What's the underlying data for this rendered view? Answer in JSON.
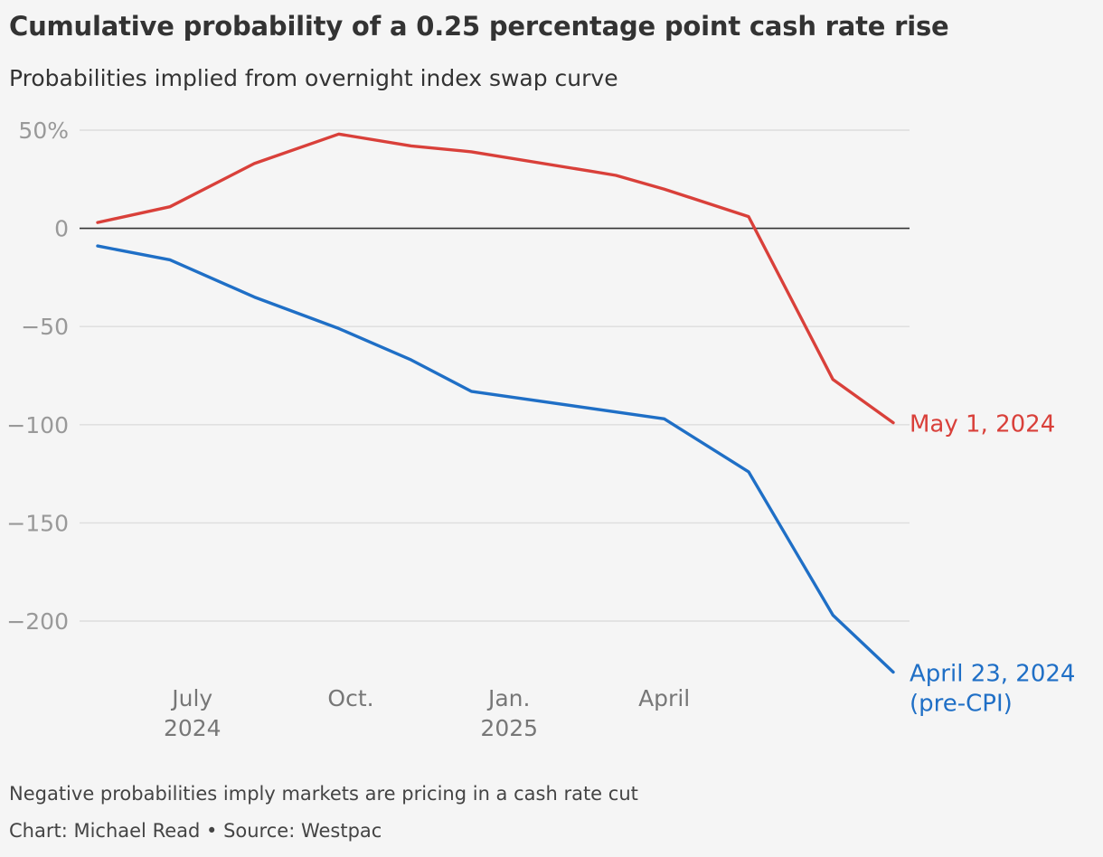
{
  "chart_data": {
    "type": "line",
    "title": "Cumulative probability of a 0.25 percentage point cash rate rise",
    "subtitle": "Probabilities implied from overnight index swap curve",
    "note": "Negative probabilities imply markets are pricing in a cash rate cut",
    "credit": "Chart: Michael Read • Source: Westpac",
    "ylim": [
      -225,
      52
    ],
    "yticks": [
      {
        "value": 50,
        "label": "50%"
      },
      {
        "value": 0,
        "label": "0"
      },
      {
        "value": -50,
        "label": "−50"
      },
      {
        "value": -100,
        "label": "−100"
      },
      {
        "value": -150,
        "label": "−150"
      },
      {
        "value": -200,
        "label": "−200"
      }
    ],
    "xlim": [
      "2024-05-02",
      "2025-07-28"
    ],
    "xticks": [
      {
        "date": "2024-07-01",
        "lines": [
          "July",
          "2024"
        ]
      },
      {
        "date": "2024-10-01",
        "lines": [
          "Oct.",
          ""
        ]
      },
      {
        "date": "2025-01-01",
        "lines": [
          "Jan.",
          "2025"
        ]
      },
      {
        "date": "2025-04-01",
        "lines": [
          "April",
          ""
        ]
      }
    ],
    "grid": true,
    "series": [
      {
        "name": "May 1, 2024",
        "color": "#d9403a",
        "points": [
          {
            "x": "2024-05-07",
            "y": 3
          },
          {
            "x": "2024-06-18",
            "y": 11
          },
          {
            "x": "2024-08-06",
            "y": 33
          },
          {
            "x": "2024-09-24",
            "y": 48
          },
          {
            "x": "2024-11-05",
            "y": 42
          },
          {
            "x": "2024-12-10",
            "y": 39
          },
          {
            "x": "2025-02-18",
            "y": 29
          },
          {
            "x": "2025-03-04",
            "y": 27
          },
          {
            "x": "2025-04-01",
            "y": 20
          },
          {
            "x": "2025-05-20",
            "y": 6
          },
          {
            "x": "2025-07-08",
            "y": -77
          },
          {
            "x": "2025-07-08",
            "y": -77
          },
          {
            "x": "2025-08-12",
            "y": -99
          }
        ]
      },
      {
        "name": "April 23, 2024 (pre-CPI)",
        "name_lines": [
          "April 23, 2024",
          "(pre-CPI)"
        ],
        "color": "#1f6fc6",
        "points": [
          {
            "x": "2024-05-07",
            "y": -9
          },
          {
            "x": "2024-06-18",
            "y": -16
          },
          {
            "x": "2024-08-06",
            "y": -35
          },
          {
            "x": "2024-09-24",
            "y": -51
          },
          {
            "x": "2024-11-05",
            "y": -67
          },
          {
            "x": "2024-12-10",
            "y": -83
          },
          {
            "x": "2025-04-01",
            "y": -97
          },
          {
            "x": "2025-05-20",
            "y": -124
          },
          {
            "x": "2025-07-08",
            "y": -197
          },
          {
            "x": "2025-08-12",
            "y": -226
          }
        ]
      }
    ]
  }
}
